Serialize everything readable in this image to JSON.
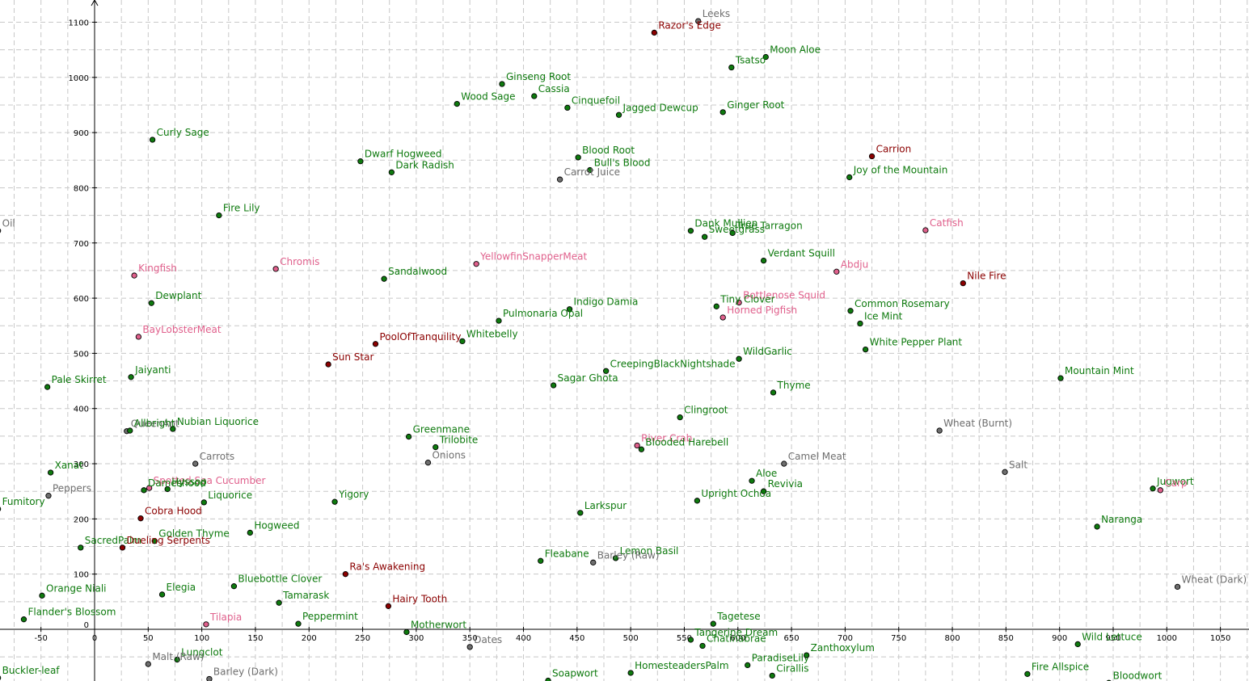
{
  "chart_data": {
    "type": "scatter",
    "title": "",
    "xlabel": "",
    "ylabel": "",
    "xlim": [
      -92,
      1075
    ],
    "ylim": [
      -100,
      1150
    ],
    "grid": true,
    "x_ticks": [
      -50,
      0,
      50,
      100,
      150,
      200,
      250,
      300,
      350,
      400,
      450,
      500,
      550,
      600,
      650,
      700,
      750,
      800,
      850,
      900,
      950,
      1000,
      1050
    ],
    "y_ticks": [
      0,
      100,
      200,
      300,
      400,
      500,
      600,
      700,
      800,
      900,
      1000,
      1100
    ],
    "colors": {
      "herb": "#0e7a0e",
      "fish": "#e0608c",
      "special": "#8b0000",
      "food": "#6e6e6e"
    },
    "points": [
      {
        "label": "Leeks",
        "x": 563,
        "y": 1102,
        "cat": "food"
      },
      {
        "label": "Razor's Edge",
        "x": 522,
        "y": 1081,
        "cat": "special"
      },
      {
        "label": "Moon Aloe",
        "x": 626,
        "y": 1037,
        "cat": "herb"
      },
      {
        "label": "Tsatso",
        "x": 594,
        "y": 1018,
        "cat": "herb"
      },
      {
        "label": "Ginseng Root",
        "x": 380,
        "y": 988,
        "cat": "herb"
      },
      {
        "label": "Cassia",
        "x": 410,
        "y": 966,
        "cat": "herb"
      },
      {
        "label": "Wood Sage",
        "x": 338,
        "y": 952,
        "cat": "herb"
      },
      {
        "label": "Cinquefoil",
        "x": 441,
        "y": 945,
        "cat": "herb"
      },
      {
        "label": "Jagged Dewcup",
        "x": 489,
        "y": 932,
        "cat": "herb"
      },
      {
        "label": "Ginger Root",
        "x": 586,
        "y": 937,
        "cat": "herb"
      },
      {
        "label": "Curly Sage",
        "x": 54,
        "y": 887,
        "cat": "herb"
      },
      {
        "label": "Carrion",
        "x": 725,
        "y": 857,
        "cat": "special"
      },
      {
        "label": "Blood Root",
        "x": 451,
        "y": 855,
        "cat": "herb"
      },
      {
        "label": "Dwarf Hogweed",
        "x": 248,
        "y": 848,
        "cat": "herb"
      },
      {
        "label": "Bull's Blood",
        "x": 462,
        "y": 832,
        "cat": "herb"
      },
      {
        "label": "Dark Radish",
        "x": 277,
        "y": 828,
        "cat": "herb"
      },
      {
        "label": "Joy of the Mountain",
        "x": 704,
        "y": 819,
        "cat": "herb"
      },
      {
        "label": "Carrot Juice",
        "x": 434,
        "y": 815,
        "cat": "food"
      },
      {
        "label": "Fire Lily",
        "x": 116,
        "y": 750,
        "cat": "herb"
      },
      {
        "label": "Oil",
        "x": -90,
        "y": 722,
        "cat": "food"
      },
      {
        "label": "Catfish",
        "x": 775,
        "y": 723,
        "cat": "fish"
      },
      {
        "label": "Dank Mullien",
        "x": 556,
        "y": 722,
        "cat": "herb"
      },
      {
        "label": "True Tarragon",
        "x": 595,
        "y": 718,
        "cat": "herb"
      },
      {
        "label": "Sweetgrass",
        "x": 569,
        "y": 711,
        "cat": "herb"
      },
      {
        "label": "Verdant Squill",
        "x": 624,
        "y": 668,
        "cat": "herb"
      },
      {
        "label": "YellowfinSnapperMeat",
        "x": 356,
        "y": 662,
        "cat": "fish"
      },
      {
        "label": "Chromis",
        "x": 169,
        "y": 653,
        "cat": "fish"
      },
      {
        "label": "Abdju",
        "x": 692,
        "y": 648,
        "cat": "fish"
      },
      {
        "label": "Kingfish",
        "x": 37,
        "y": 641,
        "cat": "fish"
      },
      {
        "label": "Sandalwood",
        "x": 270,
        "y": 635,
        "cat": "herb"
      },
      {
        "label": "Nile Fire",
        "x": 810,
        "y": 627,
        "cat": "special"
      },
      {
        "label": "Dewplant",
        "x": 53,
        "y": 591,
        "cat": "herb"
      },
      {
        "label": "Bottlenose Squid",
        "x": 601,
        "y": 592,
        "cat": "fish"
      },
      {
        "label": "Tiny Clover",
        "x": 580,
        "y": 585,
        "cat": "herb"
      },
      {
        "label": "Indigo Damia",
        "x": 443,
        "y": 580,
        "cat": "herb"
      },
      {
        "label": "Common Rosemary",
        "x": 705,
        "y": 577,
        "cat": "herb"
      },
      {
        "label": "Horned Pigfish",
        "x": 586,
        "y": 565,
        "cat": "fish"
      },
      {
        "label": "Ice Mint",
        "x": 714,
        "y": 554,
        "cat": "herb"
      },
      {
        "label": "Pulmonaria Opal",
        "x": 377,
        "y": 559,
        "cat": "herb"
      },
      {
        "label": "BayLobsterMeat",
        "x": 41,
        "y": 530,
        "cat": "fish"
      },
      {
        "label": "PoolOfTranquility",
        "x": 262,
        "y": 517,
        "cat": "special"
      },
      {
        "label": "Whitebelly",
        "x": 343,
        "y": 522,
        "cat": "herb"
      },
      {
        "label": "White Pepper Plant",
        "x": 719,
        "y": 507,
        "cat": "herb"
      },
      {
        "label": "WildGarlic",
        "x": 601,
        "y": 490,
        "cat": "herb"
      },
      {
        "label": "Sun Star",
        "x": 218,
        "y": 480,
        "cat": "special"
      },
      {
        "label": "CreepingBlackNightshade",
        "x": 477,
        "y": 468,
        "cat": "herb"
      },
      {
        "label": "Jaiyanti",
        "x": 34,
        "y": 457,
        "cat": "herb"
      },
      {
        "label": "Mountain Mint",
        "x": 901,
        "y": 455,
        "cat": "herb"
      },
      {
        "label": "Pale Skirret",
        "x": -44,
        "y": 439,
        "cat": "herb"
      },
      {
        "label": "Sagar Ghota",
        "x": 428,
        "y": 442,
        "cat": "herb"
      },
      {
        "label": "Thyme",
        "x": 633,
        "y": 429,
        "cat": "herb"
      },
      {
        "label": "Clingroot",
        "x": 546,
        "y": 384,
        "cat": "herb"
      },
      {
        "label": "Nubian Liquorice",
        "x": 73,
        "y": 363,
        "cat": "herb"
      },
      {
        "label": "Wheat (Burnt)",
        "x": 788,
        "y": 360,
        "cat": "food"
      },
      {
        "label": "QueenAnt",
        "x": 30,
        "y": 359,
        "cat": "food"
      },
      {
        "label": "Allbright",
        "x": 33,
        "y": 360,
        "cat": "herb"
      },
      {
        "label": "Greenmane",
        "x": 293,
        "y": 349,
        "cat": "herb"
      },
      {
        "label": "Trilobite",
        "x": 318,
        "y": 330,
        "cat": "herb"
      },
      {
        "label": "River Crab",
        "x": 506,
        "y": 333,
        "cat": "fish"
      },
      {
        "label": "Blooded Harebell",
        "x": 510,
        "y": 326,
        "cat": "herb"
      },
      {
        "label": "Carrots",
        "x": 94,
        "y": 300,
        "cat": "food"
      },
      {
        "label": "Onions",
        "x": 311,
        "y": 302,
        "cat": "food"
      },
      {
        "label": "Camel Meat",
        "x": 643,
        "y": 300,
        "cat": "food"
      },
      {
        "label": "Xanat",
        "x": -41,
        "y": 284,
        "cat": "herb"
      },
      {
        "label": "Salt",
        "x": 849,
        "y": 285,
        "cat": "food"
      },
      {
        "label": "Aloe",
        "x": 613,
        "y": 269,
        "cat": "herb"
      },
      {
        "label": "Peppers",
        "x": -43,
        "y": 242,
        "cat": "food"
      },
      {
        "label": "Spotted Sea Cucumber",
        "x": 51,
        "y": 256,
        "cat": "fish"
      },
      {
        "label": "Hyssop",
        "x": 68,
        "y": 254,
        "cat": "herb"
      },
      {
        "label": "Dameshood",
        "x": 46,
        "y": 252,
        "cat": "herb"
      },
      {
        "label": "Revivia",
        "x": 624,
        "y": 250,
        "cat": "herb"
      },
      {
        "label": "Jugwort",
        "x": 987,
        "y": 255,
        "cat": "herb"
      },
      {
        "label": "Carp",
        "x": 994,
        "y": 252,
        "cat": "fish"
      },
      {
        "label": "Fumitory",
        "x": -90,
        "y": 218,
        "cat": "herb"
      },
      {
        "label": "Yigory",
        "x": 224,
        "y": 231,
        "cat": "herb"
      },
      {
        "label": "Liquorice",
        "x": 102,
        "y": 230,
        "cat": "herb"
      },
      {
        "label": "Upright Ochoa",
        "x": 562,
        "y": 233,
        "cat": "herb"
      },
      {
        "label": "Larkspur",
        "x": 453,
        "y": 211,
        "cat": "herb"
      },
      {
        "label": "Cobra Hood",
        "x": 43,
        "y": 201,
        "cat": "special"
      },
      {
        "label": "Naranga",
        "x": 935,
        "y": 186,
        "cat": "herb"
      },
      {
        "label": "Hogweed",
        "x": 145,
        "y": 175,
        "cat": "herb"
      },
      {
        "label": "Golden Thyme",
        "x": 56,
        "y": 160,
        "cat": "herb"
      },
      {
        "label": "SacredPalm",
        "x": -13,
        "y": 148,
        "cat": "herb"
      },
      {
        "label": "Dueling Serpents",
        "x": 26,
        "y": 148,
        "cat": "special"
      },
      {
        "label": "Lemon Basil",
        "x": 486,
        "y": 129,
        "cat": "herb"
      },
      {
        "label": "Fleabane",
        "x": 416,
        "y": 124,
        "cat": "herb"
      },
      {
        "label": "Barley (Raw)",
        "x": 465,
        "y": 121,
        "cat": "food"
      },
      {
        "label": "Ra's Awakening",
        "x": 234,
        "y": 100,
        "cat": "special"
      },
      {
        "label": "Orange Niali",
        "x": -49,
        "y": 61,
        "cat": "herb"
      },
      {
        "label": "Elegia",
        "x": 63,
        "y": 63,
        "cat": "herb"
      },
      {
        "label": "Bluebottle Clover",
        "x": 130,
        "y": 78,
        "cat": "herb"
      },
      {
        "label": "Tamarask",
        "x": 172,
        "y": 48,
        "cat": "herb"
      },
      {
        "label": "Hairy Tooth",
        "x": 274,
        "y": 42,
        "cat": "special"
      },
      {
        "label": "Wheat (Dark)",
        "x": 1010,
        "y": 77,
        "cat": "food"
      },
      {
        "label": "Flander's Blossom",
        "x": -66,
        "y": 18,
        "cat": "herb"
      },
      {
        "label": "Tilapia",
        "x": 104,
        "y": 9,
        "cat": "fish"
      },
      {
        "label": "Peppermint",
        "x": 190,
        "y": 10,
        "cat": "herb"
      },
      {
        "label": "Tagetese",
        "x": 577,
        "y": 10,
        "cat": "herb"
      },
      {
        "label": "Motherwort",
        "x": 291,
        "y": -5,
        "cat": "herb"
      },
      {
        "label": "Tangerine Dream",
        "x": 556,
        "y": -19,
        "cat": "herb"
      },
      {
        "label": "Dates",
        "x": 350,
        "y": -32,
        "cat": "food"
      },
      {
        "label": "Chatinabrae",
        "x": 567,
        "y": -30,
        "cat": "herb"
      },
      {
        "label": "Wild Lettuce",
        "x": 917,
        "y": -27,
        "cat": "herb"
      },
      {
        "label": "Lungclot",
        "x": 77,
        "y": -55,
        "cat": "herb"
      },
      {
        "label": "ParadiseLily",
        "x": 609,
        "y": -65,
        "cat": "herb"
      },
      {
        "label": "Zanthoxylum",
        "x": 664,
        "y": -47,
        "cat": "herb"
      },
      {
        "label": "Cirallis",
        "x": 632,
        "y": -84,
        "cat": "herb"
      },
      {
        "label": "Buckler-leaf",
        "x": -90,
        "y": -88,
        "cat": "herb"
      },
      {
        "label": "Malt (Raw)",
        "x": 50,
        "y": -63,
        "cat": "food"
      },
      {
        "label": "HomesteadersPalm",
        "x": 500,
        "y": -79,
        "cat": "herb"
      },
      {
        "label": "Barley (Dark)",
        "x": 107,
        "y": -90,
        "cat": "food"
      },
      {
        "label": "Soapwort",
        "x": 423,
        "y": -93,
        "cat": "herb"
      },
      {
        "label": "Fire Allspice",
        "x": 870,
        "y": -81,
        "cat": "herb"
      },
      {
        "label": "Bloodwort",
        "x": 946,
        "y": -97,
        "cat": "herb"
      }
    ]
  }
}
